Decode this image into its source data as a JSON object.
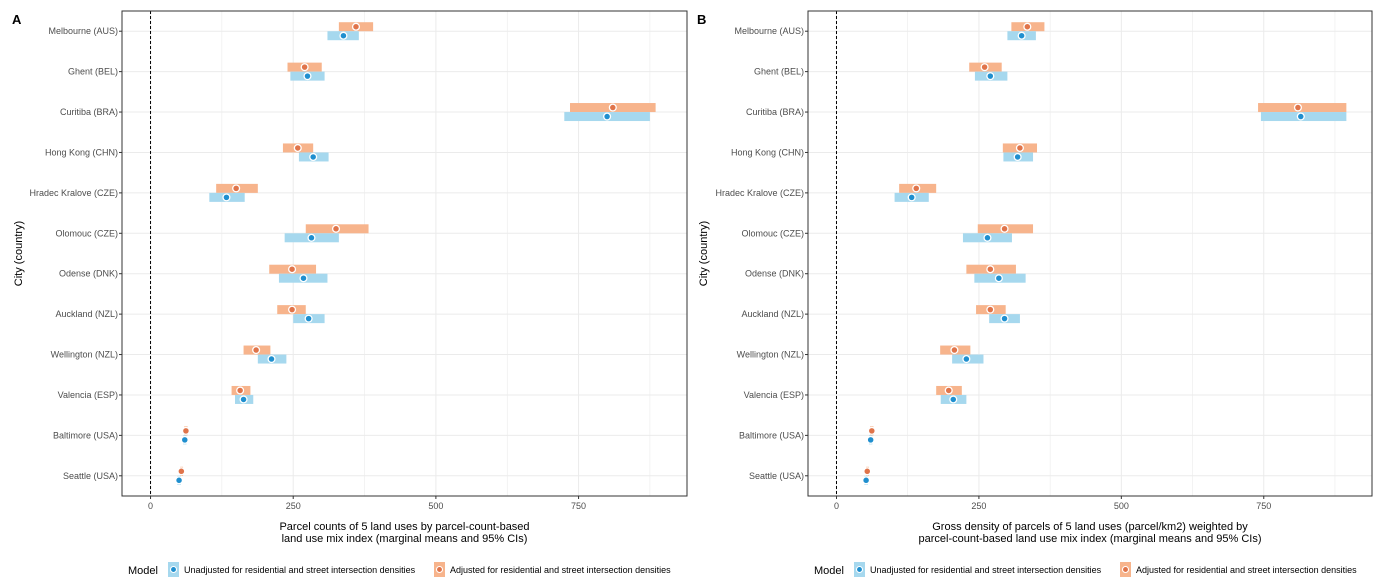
{
  "colors": {
    "unadjusted_fill": "#a6d8ee",
    "unadjusted_point": "#1f8fcf",
    "adjusted_fill": "#f7b48c",
    "adjusted_point": "#e0744a",
    "grid": "#ebebeb",
    "panel_border": "#333333"
  },
  "legend": {
    "title": "Model",
    "placement": "bottom",
    "entries": [
      {
        "key": "unadjusted",
        "label": "Unadjusted for residential and street intersection densities"
      },
      {
        "key": "adjusted",
        "label": "Adjusted for residential and street intersection densities"
      }
    ]
  },
  "chart_data": [
    {
      "type": "dot-interval",
      "panel": "A",
      "ylabel": "City (country)",
      "xlabel_lines": [
        "Parcel counts of 5 land uses by parcel-count-based",
        "land use mix index (marginal means and 95% CIs)"
      ],
      "xlim": [
        -50,
        940
      ],
      "xticks": [
        0,
        250,
        500,
        750
      ],
      "reference_line_x": 0,
      "grid": true,
      "categories": [
        "Melbourne (AUS)",
        "Ghent (BEL)",
        "Curitiba (BRA)",
        "Hong Kong (CHN)",
        "Hradec Kralove (CZE)",
        "Olomouc (CZE)",
        "Odense (DNK)",
        "Auckland (NZL)",
        "Wellington (NZL)",
        "Valencia (ESP)",
        "Baltimore (USA)",
        "Seattle (USA)"
      ],
      "series": [
        {
          "key": "adjusted",
          "name": "Adjusted for residential and street intersection densities",
          "points": [
            {
              "mean": 360,
              "low": 330,
              "high": 390
            },
            {
              "mean": 270,
              "low": 240,
              "high": 300
            },
            {
              "mean": 810,
              "low": 735,
              "high": 885
            },
            {
              "mean": 258,
              "low": 232,
              "high": 285
            },
            {
              "mean": 150,
              "low": 115,
              "high": 188
            },
            {
              "mean": 325,
              "low": 272,
              "high": 382
            },
            {
              "mean": 248,
              "low": 208,
              "high": 290
            },
            {
              "mean": 248,
              "low": 222,
              "high": 272
            },
            {
              "mean": 185,
              "low": 163,
              "high": 210
            },
            {
              "mean": 157,
              "low": 142,
              "high": 175
            },
            {
              "mean": 62,
              "low": 59,
              "high": 65
            },
            {
              "mean": 54,
              "low": 52,
              "high": 57
            }
          ]
        },
        {
          "key": "unadjusted",
          "name": "Unadjusted for residential and street intersection densities",
          "points": [
            {
              "mean": 338,
              "low": 310,
              "high": 365
            },
            {
              "mean": 275,
              "low": 245,
              "high": 305
            },
            {
              "mean": 800,
              "low": 725,
              "high": 875
            },
            {
              "mean": 285,
              "low": 260,
              "high": 312
            },
            {
              "mean": 133,
              "low": 103,
              "high": 165
            },
            {
              "mean": 282,
              "low": 235,
              "high": 330
            },
            {
              "mean": 268,
              "low": 225,
              "high": 310
            },
            {
              "mean": 277,
              "low": 250,
              "high": 305
            },
            {
              "mean": 212,
              "low": 188,
              "high": 238
            },
            {
              "mean": 163,
              "low": 148,
              "high": 180
            },
            {
              "mean": 60,
              "low": 57,
              "high": 63
            },
            {
              "mean": 50,
              "low": 47,
              "high": 53
            }
          ]
        }
      ]
    },
    {
      "type": "dot-interval",
      "panel": "B",
      "ylabel": "City (country)",
      "xlabel_lines": [
        "Gross density of parcels of 5 land uses (parcel/km2) weighted by",
        "parcel-count-based land use mix index (marginal means and 95% CIs)"
      ],
      "xlim": [
        -50,
        940
      ],
      "xticks": [
        0,
        250,
        500,
        750
      ],
      "reference_line_x": 0,
      "grid": true,
      "categories": [
        "Melbourne (AUS)",
        "Ghent (BEL)",
        "Curitiba (BRA)",
        "Hong Kong (CHN)",
        "Hradec Kralove (CZE)",
        "Olomouc (CZE)",
        "Odense (DNK)",
        "Auckland (NZL)",
        "Wellington (NZL)",
        "Valencia (ESP)",
        "Baltimore (USA)",
        "Seattle (USA)"
      ],
      "series": [
        {
          "key": "adjusted",
          "name": "Adjusted for residential and street intersection densities",
          "points": [
            {
              "mean": 335,
              "low": 307,
              "high": 365
            },
            {
              "mean": 260,
              "low": 233,
              "high": 290
            },
            {
              "mean": 810,
              "low": 740,
              "high": 895
            },
            {
              "mean": 322,
              "low": 292,
              "high": 352
            },
            {
              "mean": 140,
              "low": 110,
              "high": 175
            },
            {
              "mean": 295,
              "low": 248,
              "high": 345
            },
            {
              "mean": 270,
              "low": 228,
              "high": 315
            },
            {
              "mean": 270,
              "low": 245,
              "high": 297
            },
            {
              "mean": 207,
              "low": 182,
              "high": 235
            },
            {
              "mean": 197,
              "low": 175,
              "high": 220
            },
            {
              "mean": 62,
              "low": 59,
              "high": 65
            },
            {
              "mean": 54,
              "low": 52,
              "high": 57
            }
          ]
        },
        {
          "key": "unadjusted",
          "name": "Unadjusted for residential and street intersection densities",
          "points": [
            {
              "mean": 325,
              "low": 300,
              "high": 350
            },
            {
              "mean": 270,
              "low": 243,
              "high": 300
            },
            {
              "mean": 815,
              "low": 745,
              "high": 895
            },
            {
              "mean": 318,
              "low": 293,
              "high": 345
            },
            {
              "mean": 132,
              "low": 102,
              "high": 162
            },
            {
              "mean": 265,
              "low": 222,
              "high": 308
            },
            {
              "mean": 285,
              "low": 242,
              "high": 332
            },
            {
              "mean": 295,
              "low": 268,
              "high": 322
            },
            {
              "mean": 228,
              "low": 203,
              "high": 258
            },
            {
              "mean": 205,
              "low": 183,
              "high": 228
            },
            {
              "mean": 60,
              "low": 57,
              "high": 63
            },
            {
              "mean": 52,
              "low": 49,
              "high": 55
            }
          ]
        }
      ]
    }
  ]
}
